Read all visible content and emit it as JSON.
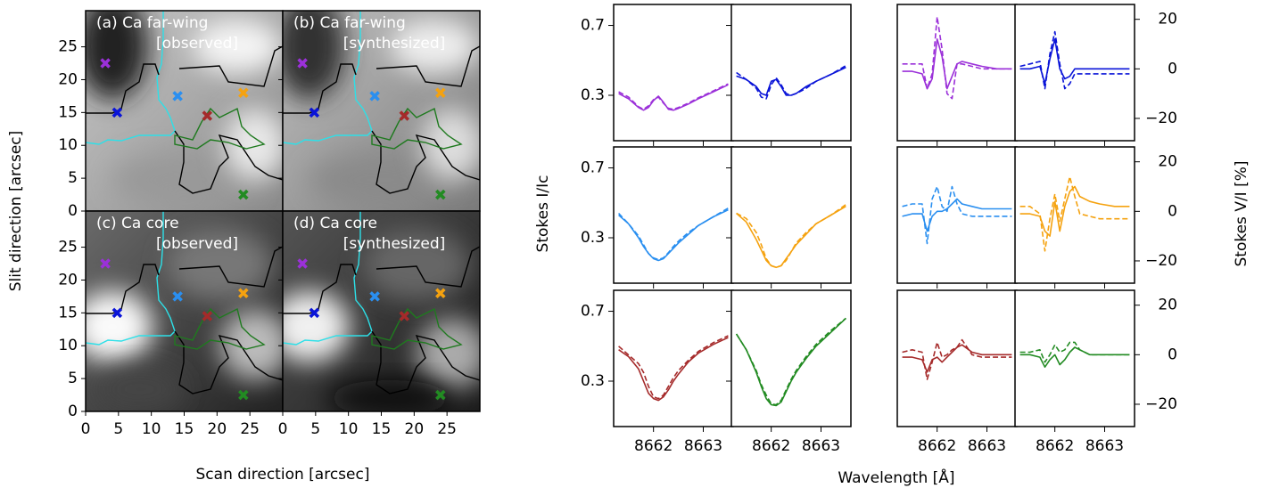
{
  "chart_data": [
    {
      "type": "map",
      "xlabel": "Scan direction [arcsec]",
      "ylabel": "Slit direction [arcsec]",
      "xlim": [
        0,
        30
      ],
      "ylim": [
        0,
        30.5
      ],
      "xticks": [
        0,
        5,
        10,
        15,
        20,
        25
      ],
      "yticks": [
        0,
        5,
        10,
        15,
        20,
        25
      ],
      "panels": [
        {
          "title": "(a) Ca far-wing",
          "subtitle": "[observed]"
        },
        {
          "title": "(b) Ca far-wing",
          "subtitle": "[synthesized]"
        },
        {
          "title": "(c) Ca core",
          "subtitle": "[observed]"
        },
        {
          "title": "(d) Ca core",
          "subtitle": "[synthesized]"
        }
      ],
      "points": {
        "x": [
          3,
          4.8,
          14,
          24,
          18.5,
          24
        ],
        "y": [
          22.5,
          15,
          17.5,
          18,
          14.5,
          2.5
        ],
        "colors": [
          "#9b30d9",
          "#0a14d8",
          "#2a8ff0",
          "#f5a20f",
          "#a52a2a",
          "#228b22"
        ]
      }
    },
    {
      "type": "line",
      "xlabel": "Wavelength [Å]",
      "ylabel": "Stokes I/Ic",
      "y2label": "Stokes V/I [%]",
      "x": [
        8661.3,
        8661.5,
        8661.7,
        8661.8,
        8661.9,
        8662.0,
        8662.1,
        8662.2,
        8662.3,
        8662.4,
        8662.5,
        8662.7,
        8662.9,
        8663.2,
        8663.5
      ],
      "xlim": [
        8661.2,
        8663.6
      ],
      "xticks": [
        8662,
        8663
      ],
      "ylim": [
        0.04,
        0.82
      ],
      "yticks": [
        0.3,
        0.7
      ],
      "y2lim": [
        -29,
        26
      ],
      "y2ticks": [
        {
          "value": -20,
          "label": "−20"
        },
        0,
        20
      ],
      "panels": [
        {
          "color": "#9b30d9",
          "axis": "y",
          "series": [
            {
              "linestyle": "solid",
              "values": [
                0.31,
                0.28,
                0.23,
                0.215,
                0.23,
                0.27,
                0.295,
                0.26,
                0.22,
                0.215,
                0.225,
                0.25,
                0.28,
                0.32,
                0.36
              ]
            },
            {
              "linestyle": "dashed",
              "values": [
                0.32,
                0.29,
                0.235,
                0.22,
                0.24,
                0.275,
                0.29,
                0.255,
                0.225,
                0.22,
                0.23,
                0.255,
                0.285,
                0.325,
                0.365
              ]
            }
          ]
        },
        {
          "color": "#0a14d8",
          "axis": "y",
          "series": [
            {
              "linestyle": "solid",
              "values": [
                0.41,
                0.39,
                0.35,
                0.31,
                0.3,
                0.38,
                0.39,
                0.35,
                0.3,
                0.3,
                0.31,
                0.35,
                0.38,
                0.42,
                0.46
              ]
            },
            {
              "linestyle": "dashed",
              "values": [
                0.43,
                0.39,
                0.34,
                0.29,
                0.28,
                0.36,
                0.4,
                0.36,
                0.31,
                0.3,
                0.31,
                0.34,
                0.38,
                0.42,
                0.47
              ]
            }
          ]
        },
        {
          "color": "#9b30d9",
          "axis": "y2",
          "series": [
            {
              "linestyle": "solid",
              "values": [
                -1,
                -1,
                -2,
                -8,
                -4,
                12,
                5,
                -8,
                -3,
                2,
                3,
                2,
                1,
                0,
                0
              ]
            },
            {
              "linestyle": "dashed",
              "values": [
                2,
                2,
                2,
                -8,
                -2,
                21,
                8,
                -10,
                -12,
                2,
                2,
                1,
                0,
                0,
                0
              ]
            }
          ]
        },
        {
          "color": "#0a14d8",
          "axis": "y2",
          "series": [
            {
              "linestyle": "solid",
              "values": [
                0,
                0,
                1,
                -6,
                4,
                12,
                0,
                -4,
                -3,
                0,
                0,
                0,
                0,
                0,
                0
              ]
            },
            {
              "linestyle": "dashed",
              "values": [
                1,
                2,
                3,
                -8,
                6,
                15,
                2,
                -8,
                -6,
                -2,
                -2,
                -2,
                -2,
                -2,
                -2
              ]
            }
          ]
        },
        {
          "color": "#2a8ff0",
          "axis": "y",
          "series": [
            {
              "linestyle": "solid",
              "values": [
                0.43,
                0.38,
                0.3,
                0.25,
                0.21,
                0.18,
                0.17,
                0.18,
                0.21,
                0.24,
                0.27,
                0.32,
                0.37,
                0.42,
                0.46
              ]
            },
            {
              "linestyle": "dashed",
              "values": [
                0.44,
                0.38,
                0.31,
                0.26,
                0.21,
                0.185,
                0.175,
                0.185,
                0.215,
                0.25,
                0.28,
                0.33,
                0.37,
                0.42,
                0.47
              ]
            }
          ]
        },
        {
          "color": "#f5a20f",
          "axis": "y",
          "series": [
            {
              "linestyle": "solid",
              "values": [
                0.44,
                0.39,
                0.29,
                0.23,
                0.17,
                0.14,
                0.13,
                0.14,
                0.18,
                0.22,
                0.26,
                0.32,
                0.38,
                0.43,
                0.48
              ]
            },
            {
              "linestyle": "dashed",
              "values": [
                0.44,
                0.41,
                0.33,
                0.26,
                0.18,
                0.14,
                0.13,
                0.14,
                0.17,
                0.22,
                0.27,
                0.33,
                0.38,
                0.43,
                0.49
              ]
            }
          ]
        },
        {
          "color": "#2a8ff0",
          "axis": "y2",
          "series": [
            {
              "linestyle": "solid",
              "values": [
                -2,
                -1,
                -1,
                -8,
                -2,
                0,
                0,
                1,
                3,
                5,
                3,
                2,
                1,
                1,
                1
              ]
            },
            {
              "linestyle": "dashed",
              "values": [
                2,
                3,
                3,
                -13,
                5,
                10,
                2,
                0,
                10,
                3,
                -1,
                -2,
                -2,
                -2,
                -2
              ]
            }
          ]
        },
        {
          "color": "#f5a20f",
          "axis": "y2",
          "series": [
            {
              "linestyle": "solid",
              "values": [
                -1,
                -1,
                -2,
                -8,
                -10,
                4,
                -8,
                2,
                8,
                10,
                6,
                4,
                3,
                2,
                2
              ]
            },
            {
              "linestyle": "dashed",
              "values": [
                2,
                2,
                -1,
                -16,
                -3,
                7,
                -4,
                5,
                14,
                6,
                -1,
                -2,
                -3,
                -3,
                -3
              ]
            }
          ]
        },
        {
          "color": "#a52a2a",
          "axis": "y",
          "series": [
            {
              "linestyle": "solid",
              "values": [
                0.48,
                0.44,
                0.37,
                0.3,
                0.23,
                0.2,
                0.19,
                0.21,
                0.25,
                0.3,
                0.34,
                0.41,
                0.46,
                0.51,
                0.55
              ]
            },
            {
              "linestyle": "dashed",
              "values": [
                0.5,
                0.45,
                0.4,
                0.35,
                0.27,
                0.21,
                0.2,
                0.22,
                0.27,
                0.32,
                0.36,
                0.42,
                0.47,
                0.52,
                0.56
              ]
            }
          ]
        },
        {
          "color": "#228b22",
          "axis": "y",
          "series": [
            {
              "linestyle": "solid",
              "values": [
                0.57,
                0.48,
                0.35,
                0.27,
                0.2,
                0.165,
                0.16,
                0.18,
                0.24,
                0.3,
                0.35,
                0.43,
                0.5,
                0.58,
                0.66
              ]
            },
            {
              "linestyle": "dashed",
              "values": [
                0.57,
                0.48,
                0.36,
                0.28,
                0.22,
                0.17,
                0.165,
                0.19,
                0.25,
                0.31,
                0.36,
                0.44,
                0.51,
                0.59,
                0.66
              ]
            }
          ]
        },
        {
          "color": "#a52a2a",
          "axis": "y2",
          "series": [
            {
              "linestyle": "solid",
              "values": [
                -1,
                -1,
                -2,
                -7,
                -2,
                -1,
                -3,
                -1,
                1,
                3,
                4,
                1,
                0,
                0,
                0
              ]
            },
            {
              "linestyle": "dashed",
              "values": [
                1,
                2,
                1,
                -10,
                -3,
                5,
                -1,
                0,
                2,
                3,
                6,
                0,
                -1,
                -1,
                -1
              ]
            }
          ]
        },
        {
          "color": "#228b22",
          "axis": "y2",
          "series": [
            {
              "linestyle": "solid",
              "values": [
                0,
                0,
                -1,
                -5,
                -2,
                0,
                -4,
                -2,
                1,
                3,
                2,
                0,
                0,
                0,
                0
              ]
            },
            {
              "linestyle": "dashed",
              "values": [
                1,
                1,
                2,
                -3,
                0,
                4,
                1,
                2,
                5,
                5,
                2,
                0,
                0,
                0,
                0
              ]
            }
          ]
        }
      ]
    }
  ]
}
